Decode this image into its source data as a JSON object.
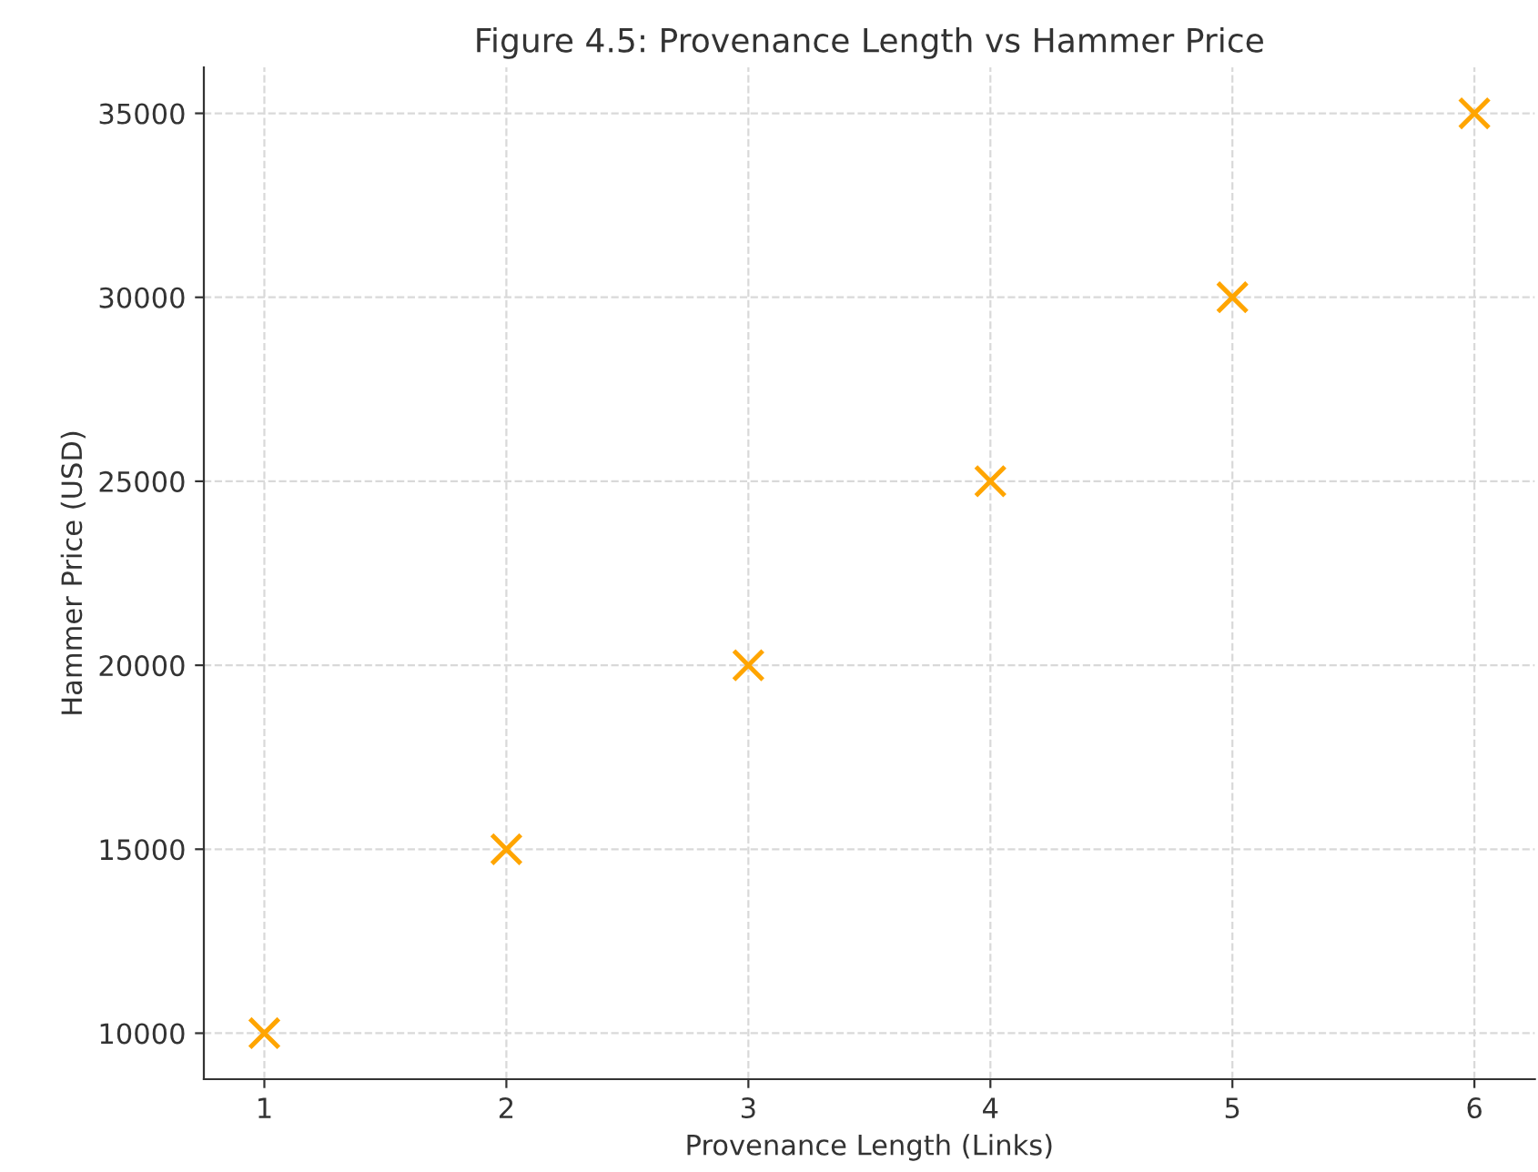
{
  "chart_data": {
    "type": "scatter",
    "title": "Figure 4.5: Provenance Length vs Hammer Price",
    "xlabel": "Provenance Length (Links)",
    "ylabel": "Hammer Price (USD)",
    "x": [
      1,
      2,
      3,
      4,
      5,
      6
    ],
    "series": [
      {
        "color": "#ffa500",
        "values": [
          10000,
          15000,
          20000,
          25000,
          30000,
          35000
        ]
      }
    ],
    "xlim": [
      0.75,
      6.25
    ],
    "xticks": [
      1,
      2,
      3,
      4,
      5,
      6
    ],
    "ylim": [
      8750,
      36250
    ],
    "yticks": [
      10000,
      15000,
      20000,
      25000,
      30000,
      35000
    ],
    "grid": true,
    "marker": "cross"
  }
}
